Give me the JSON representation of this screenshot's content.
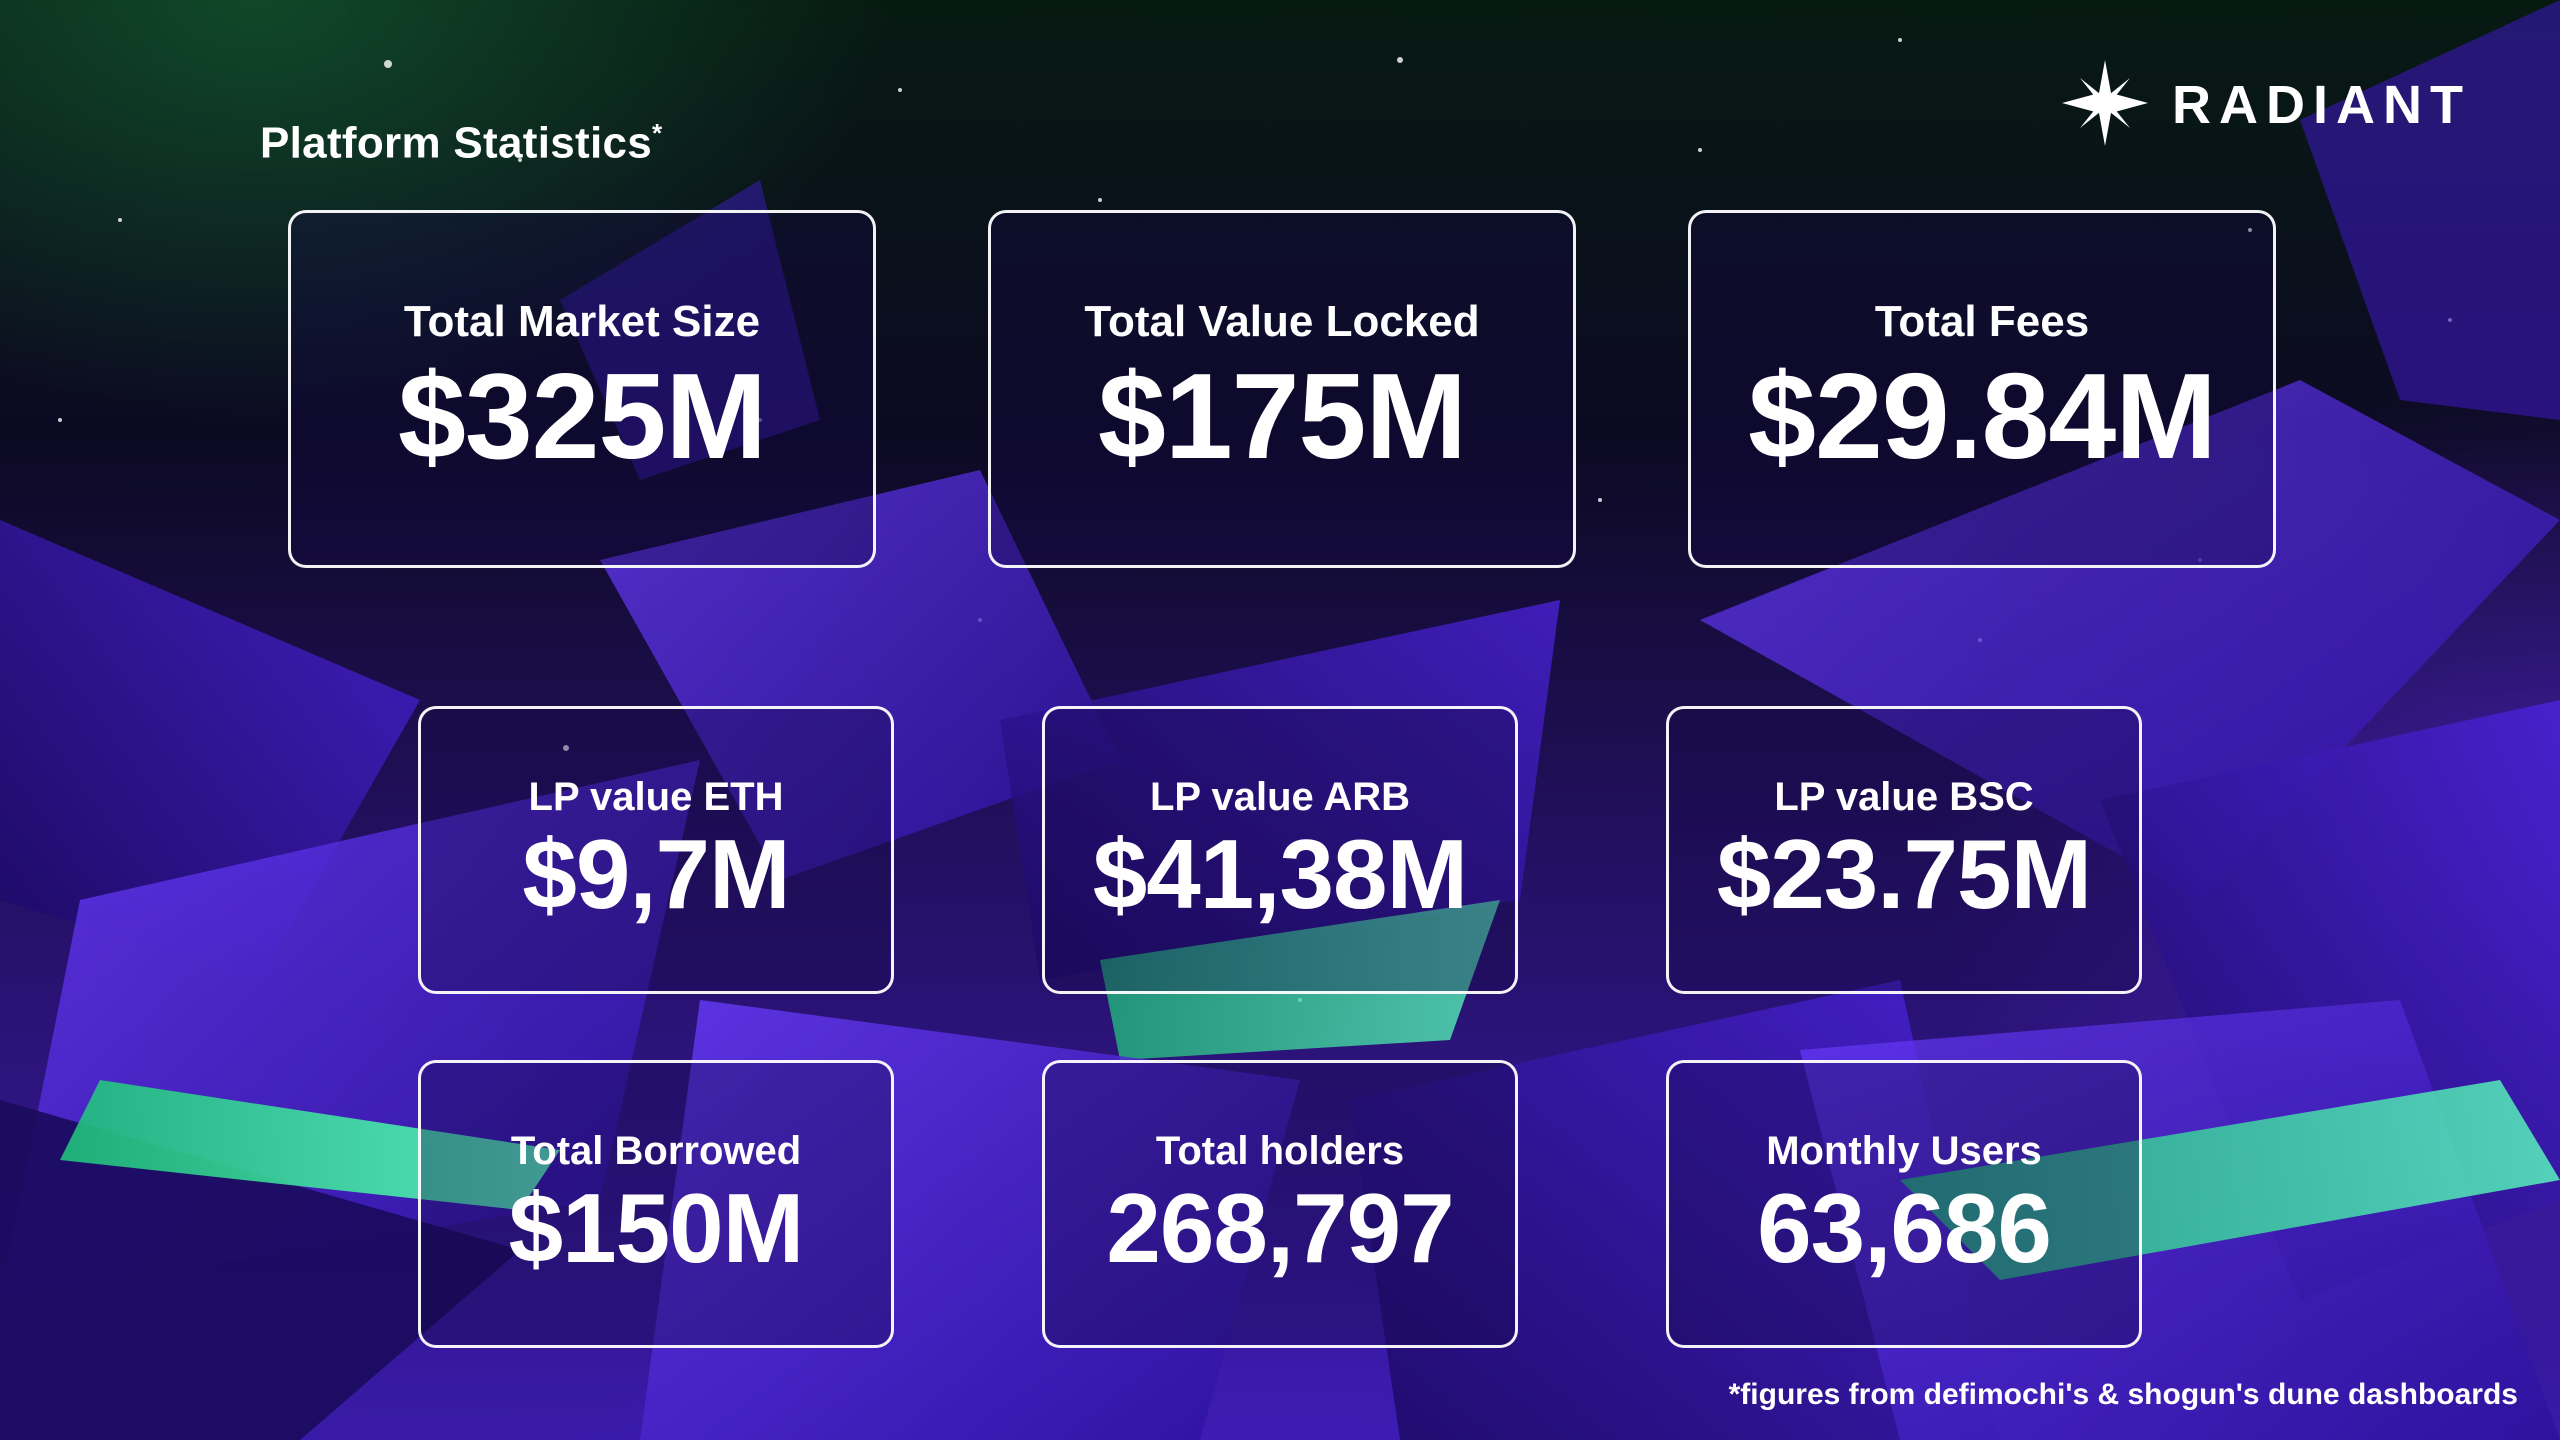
{
  "header": {
    "title": "Platform Statistics",
    "title_mark": "*"
  },
  "brand": {
    "name": "RADIANT",
    "icon": "star-burst-icon"
  },
  "stats_top": [
    {
      "label": "Total Market Size",
      "value": "$325M"
    },
    {
      "label": "Total Value Locked",
      "value": "$175M"
    },
    {
      "label": "Total Fees",
      "value": "$29.84M"
    }
  ],
  "stats_middle": [
    {
      "label": "LP value ETH",
      "value": "$9,7M"
    },
    {
      "label": "LP value ARB",
      "value": "$41,38M"
    },
    {
      "label": "LP value BSC",
      "value": "$23.75M"
    }
  ],
  "stats_bottom": [
    {
      "label": "Total Borrowed",
      "value": "$150M"
    },
    {
      "label": "Total holders",
      "value": "268,797"
    },
    {
      "label": "Monthly Users",
      "value": "63,686"
    }
  ],
  "footnote": "*figures from defimochi's & shogun's dune dashboards",
  "colors": {
    "accent_purple": "#5b2cf0",
    "accent_green": "#2ee59d",
    "background_dark": "#0c0a22"
  }
}
